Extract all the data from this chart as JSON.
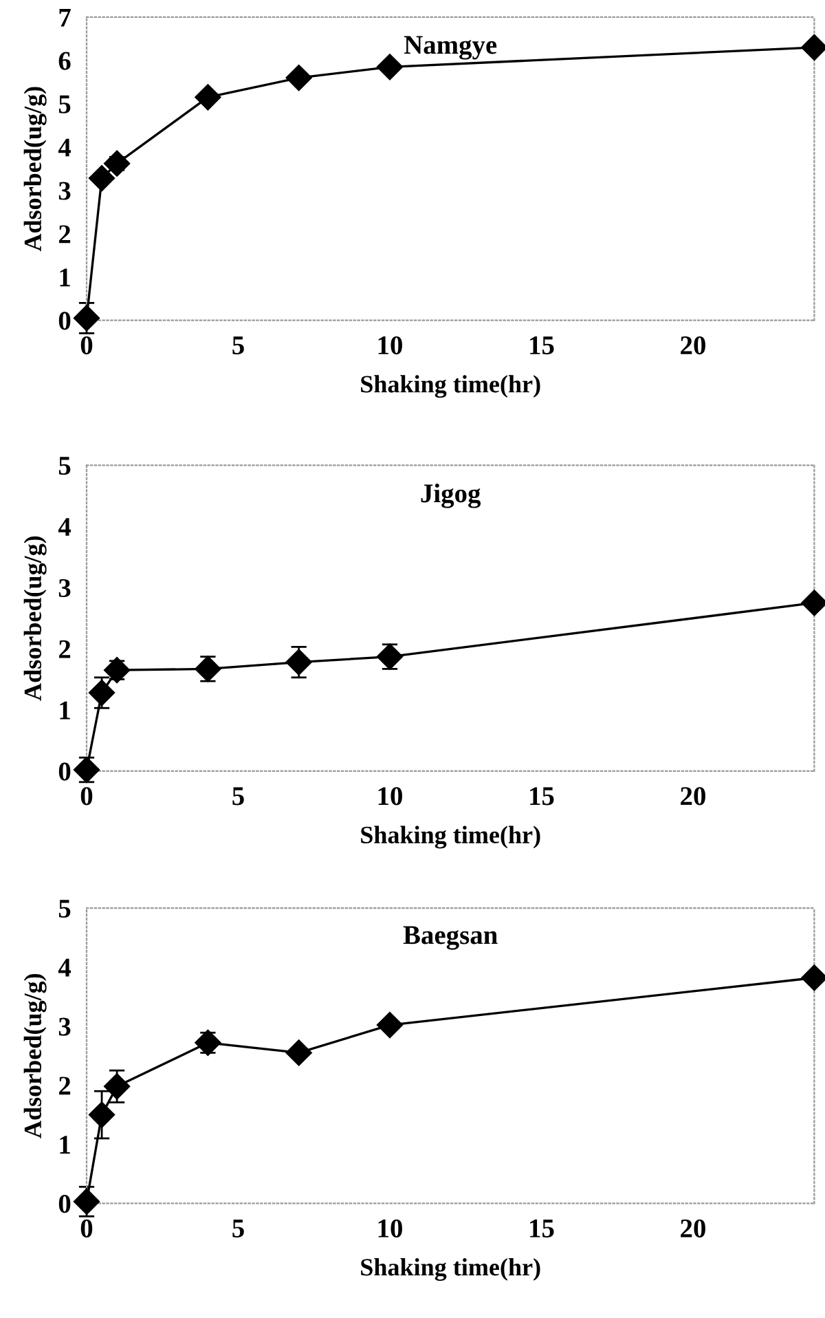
{
  "chart_data": [
    {
      "type": "line",
      "title": "Namgye",
      "xlabel": "Shaking time(hr)",
      "ylabel": "Adsorbed(ug/g)",
      "x": [
        0,
        0.5,
        1,
        4,
        7,
        10,
        24
      ],
      "series": [
        {
          "color": "#000000",
          "values": [
            0.05,
            3.28,
            3.62,
            5.15,
            5.6,
            5.85,
            6.3
          ],
          "errors": [
            0.35,
            null,
            0.15,
            null,
            null,
            0.1,
            null
          ]
        }
      ],
      "xlim": [
        0,
        24
      ],
      "xticks": [
        0,
        5,
        10,
        15,
        20
      ],
      "ylim": [
        0,
        7
      ],
      "yticks": [
        0,
        1,
        2,
        3,
        4,
        5,
        6,
        7
      ],
      "marker": "diamond",
      "line_style": "solid"
    },
    {
      "type": "line",
      "title": "Jigog",
      "xlabel": "Shaking time(hr)",
      "ylabel": "Adsorbed(ug/g)",
      "x": [
        0,
        0.5,
        1,
        4,
        7,
        10,
        24
      ],
      "series": [
        {
          "color": "#000000",
          "values": [
            0.02,
            1.28,
            1.65,
            1.67,
            1.78,
            1.87,
            2.75
          ],
          "errors": [
            0.2,
            0.25,
            0.15,
            0.2,
            0.25,
            0.2,
            null
          ]
        }
      ],
      "xlim": [
        0,
        24
      ],
      "xticks": [
        0,
        5,
        10,
        15,
        20
      ],
      "ylim": [
        0,
        5
      ],
      "yticks": [
        0,
        1,
        2,
        3,
        4,
        5
      ],
      "marker": "diamond",
      "line_style": "solid"
    },
    {
      "type": "line",
      "title": "Baegsan",
      "xlabel": "Shaking time(hr)",
      "ylabel": "Adsorbed(ug/g)",
      "x": [
        0,
        0.5,
        1,
        4,
        7,
        10,
        24
      ],
      "series": [
        {
          "color": "#000000",
          "values": [
            0.03,
            1.5,
            1.98,
            2.72,
            2.55,
            3.02,
            3.82
          ],
          "errors": [
            0.25,
            0.4,
            0.27,
            0.17,
            null,
            null,
            null
          ]
        }
      ],
      "xlim": [
        0,
        24
      ],
      "xticks": [
        0,
        5,
        10,
        15,
        20
      ],
      "ylim": [
        0,
        5
      ],
      "yticks": [
        0,
        1,
        2,
        3,
        4,
        5
      ],
      "marker": "diamond",
      "line_style": "solid"
    }
  ]
}
